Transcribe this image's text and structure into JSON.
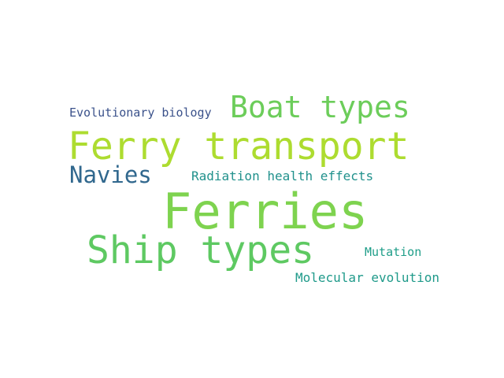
{
  "words": [
    {
      "text": "Ferries",
      "color": "#7ed34f"
    },
    {
      "text": "Ferry transport",
      "color": "#addc30"
    },
    {
      "text": "Ship types",
      "color": "#5ec962"
    },
    {
      "text": "Boat types",
      "color": "#6ccd5a"
    },
    {
      "text": "Navies",
      "color": "#31688e"
    },
    {
      "text": "Evolutionary biology",
      "color": "#3b528b"
    },
    {
      "text": "Radiation health effects",
      "color": "#21918c"
    },
    {
      "text": "Mutation",
      "color": "#1f9e89"
    },
    {
      "text": "Molecular evolution",
      "color": "#1f9a8a"
    }
  ]
}
